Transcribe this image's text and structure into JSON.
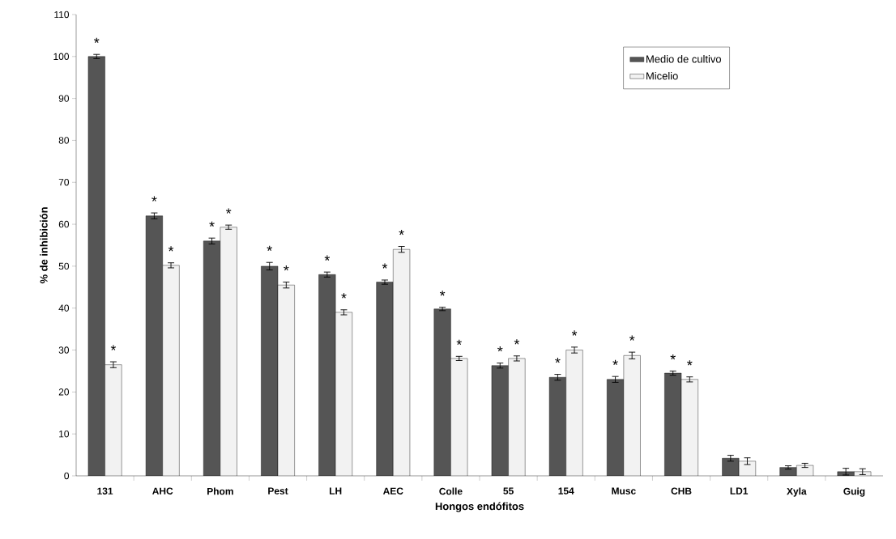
{
  "chart_data": {
    "type": "bar",
    "xlabel": "Hongos endófitos",
    "ylabel": "% de inhibición",
    "categories": [
      "131",
      "AHC",
      "Phom",
      "Pest",
      "LH",
      "AEC",
      "Colle",
      "55",
      "154",
      "Musc",
      "CHB",
      "LD1",
      "Xyla",
      "Guig"
    ],
    "series": [
      {
        "name": "Medio de cultivo",
        "color": "#555555",
        "values": [
          100,
          62,
          56,
          50,
          48,
          46.2,
          39.8,
          26.3,
          23.5,
          23,
          24.5,
          4.2,
          2,
          1
        ],
        "errors": [
          0.5,
          0.7,
          0.7,
          0.9,
          0.6,
          0.5,
          0.4,
          0.6,
          0.7,
          0.7,
          0.5,
          0.7,
          0.4,
          0.8
        ],
        "value_labels": [
          "*",
          "*",
          "*",
          "*",
          "*",
          "*",
          "*",
          "*",
          "*",
          "*",
          "*",
          null,
          null,
          null
        ]
      },
      {
        "name": "Micelio",
        "color": "#f2f2f2",
        "values": [
          26.5,
          50.2,
          59.3,
          45.5,
          39,
          54,
          28,
          28,
          30,
          28.7,
          23,
          3.5,
          2.5,
          1
        ],
        "errors": [
          0.7,
          0.6,
          0.5,
          0.7,
          0.6,
          0.7,
          0.5,
          0.6,
          0.7,
          0.8,
          0.6,
          0.8,
          0.5,
          0.7
        ],
        "value_labels": [
          "*",
          "*",
          "*",
          "*",
          "*",
          "*",
          "*",
          "*",
          "*",
          "*",
          "*",
          null,
          null,
          null
        ]
      }
    ],
    "ylim": [
      0,
      110
    ],
    "yticks": [
      0,
      10,
      20,
      30,
      40,
      50,
      60,
      70,
      80,
      90,
      100,
      110
    ],
    "legend": "top right",
    "grid": false
  }
}
